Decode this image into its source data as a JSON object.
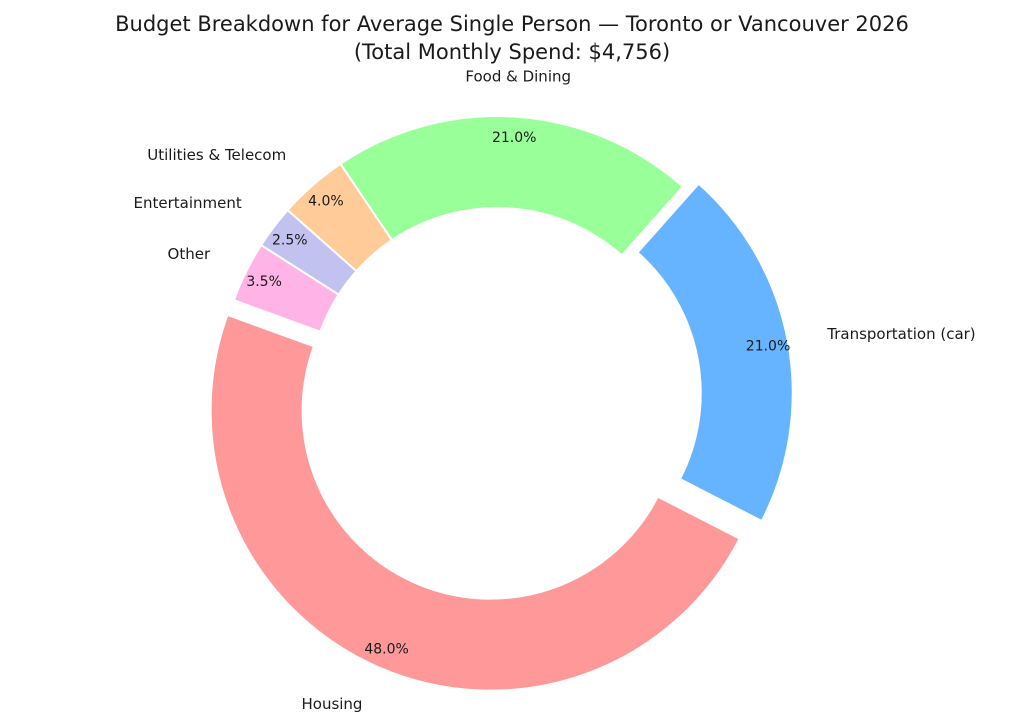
{
  "chart_data": {
    "type": "pie",
    "subtype": "donut",
    "title_line1": "Budget Breakdown for Average Single Person — Toronto or Vancouver 2026",
    "title_line2": "(Total Monthly Spend: $4,756)",
    "start_angle_deg": 160,
    "direction": "counterclockwise",
    "legend": "none",
    "slices": [
      {
        "label": "Housing",
        "value": 48.0,
        "pct_label": "48.0%",
        "color": "#ff9999",
        "exploded": true
      },
      {
        "label": "Transportation (car)",
        "value": 21.0,
        "pct_label": "21.0%",
        "color": "#66b3ff",
        "exploded": true
      },
      {
        "label": "Food & Dining",
        "value": 21.0,
        "pct_label": "21.0%",
        "color": "#99ff99",
        "exploded": false
      },
      {
        "label": "Utilities & Telecom",
        "value": 4.0,
        "pct_label": "4.0%",
        "color": "#ffcc99",
        "exploded": false
      },
      {
        "label": "Entertainment",
        "value": 2.5,
        "pct_label": "2.5%",
        "color": "#c2c2f0",
        "exploded": false
      },
      {
        "label": "Other",
        "value": 3.5,
        "pct_label": "3.5%",
        "color": "#ffb3e6",
        "exploded": false
      }
    ]
  }
}
